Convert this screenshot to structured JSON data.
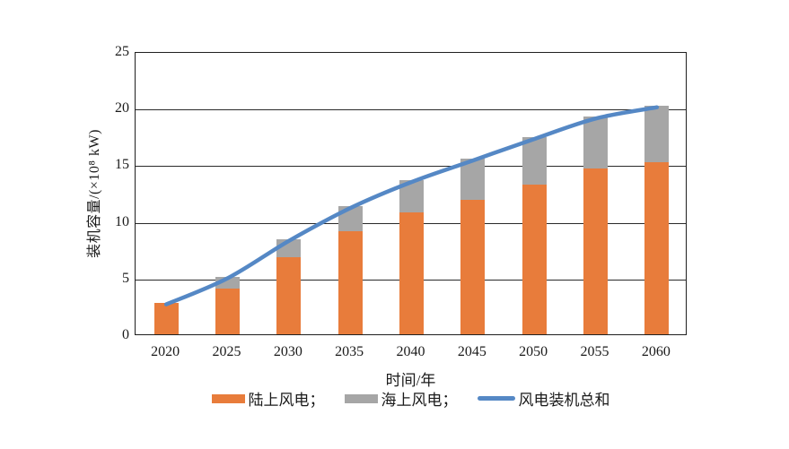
{
  "figure": {
    "background_color": "#ffffff",
    "plot_border_color": "#1f1f1f",
    "gridline_color": "#2a2a2a"
  },
  "chart_data": {
    "type": "bar",
    "subtype": "stacked-bar-with-line-overlay",
    "title": "",
    "xlabel": "时间/年",
    "ylabel": "装机容量/(×10⁸ kW)",
    "categories": [
      "2020",
      "2025",
      "2030",
      "2035",
      "2040",
      "2045",
      "2050",
      "2055",
      "2060"
    ],
    "series": [
      {
        "name": "陆上风电",
        "render": "bar",
        "color": "#E87C3B",
        "values": [
          2.8,
          4.0,
          6.8,
          9.1,
          10.8,
          11.9,
          13.2,
          14.6,
          15.2
        ]
      },
      {
        "name": "海上风电",
        "render": "bar",
        "color": "#A6A6A6",
        "values": [
          0,
          1.1,
          1.6,
          2.2,
          2.8,
          3.6,
          4.2,
          4.6,
          5.0
        ]
      },
      {
        "name": "风电装机总和",
        "render": "line",
        "color": "#5588C5",
        "values": [
          2.8,
          5.1,
          8.4,
          11.3,
          13.6,
          15.5,
          17.4,
          19.2,
          20.2
        ]
      }
    ],
    "ylim": [
      0,
      25
    ],
    "yticks": [
      0,
      5,
      10,
      15,
      20,
      25
    ],
    "grid": true,
    "legend_position": "bottom",
    "legend": [
      {
        "label": "陆上风电；",
        "swatch": "rect",
        "color": "#E87C3B"
      },
      {
        "label": "海上风电；",
        "swatch": "rect",
        "color": "#A6A6A6"
      },
      {
        "label": "风电装机总和",
        "swatch": "line",
        "color": "#5588C5"
      }
    ]
  }
}
